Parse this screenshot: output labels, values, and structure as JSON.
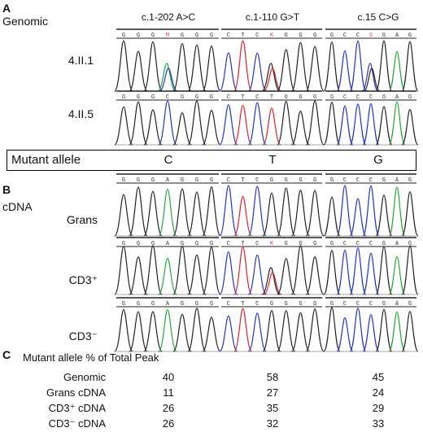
{
  "panels": {
    "a": "A",
    "b": "B",
    "c": "C"
  },
  "sections": {
    "genomic": "Genomic",
    "cdna": "cDNA"
  },
  "columns": [
    "c.1-202 A>C",
    "c.1-110 G>T",
    "c.15 C>G"
  ],
  "genomic_rows": [
    "4.II.1",
    "4.II.5"
  ],
  "mutant_allele": {
    "label": "Mutant allele",
    "bases": [
      "C",
      "T",
      "G"
    ]
  },
  "cdna_rows": [
    "Grans",
    "CD3⁺",
    "CD3⁻"
  ],
  "sequence_bars": [
    [
      "G G G M G G G",
      "C T C K G G G",
      "G C C S G A G"
    ],
    [
      "G G G C G G G",
      "C T C T G G G",
      "G C C C G A G"
    ],
    [
      "G G G A G G G",
      "C T C G G G G",
      "G C C C G A G"
    ],
    [
      "G G G A G G G",
      "C T C K G G G",
      "G C C C G A G"
    ],
    [
      "G G G A G G G",
      "C T C G G G G",
      "G C C C G A G"
    ]
  ],
  "trace_colors": {
    "G": "#222222",
    "A": "#22aa33",
    "T": "#dd2222",
    "C": "#2233cc"
  },
  "table": {
    "title": "Mutant allele % of Total Peak",
    "rows": [
      {
        "label": "Genomic",
        "values": [
          "40",
          "58",
          "45"
        ]
      },
      {
        "label": "Grans cDNA",
        "values": [
          "11",
          "27",
          "24"
        ]
      },
      {
        "label": "CD3⁺ cDNA",
        "values": [
          "26",
          "35",
          "29"
        ]
      },
      {
        "label": "CD3⁻ cDNA",
        "values": [
          "26",
          "32",
          "33"
        ]
      }
    ]
  }
}
